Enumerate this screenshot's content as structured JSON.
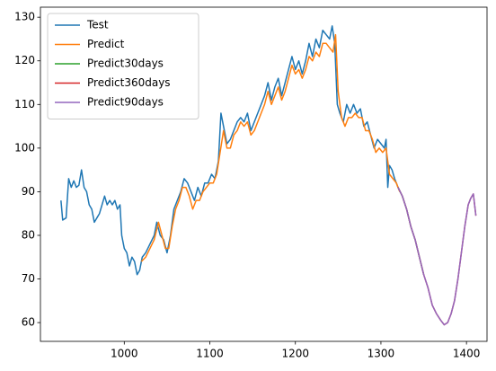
{
  "chart_data": {
    "type": "line",
    "xlim": [
      902,
      1424
    ],
    "ylim": [
      55.7,
      132.3
    ],
    "xticks": [
      1000,
      1100,
      1200,
      1300,
      1400
    ],
    "yticks": [
      60,
      70,
      80,
      90,
      100,
      110,
      120,
      130
    ],
    "legend": "upper left",
    "series": [
      {
        "name": "Test",
        "color": "#1f77b4",
        "x": [
          926,
          928,
          932,
          935,
          938,
          941,
          944,
          947,
          950,
          953,
          956,
          959,
          962,
          965,
          968,
          971,
          974,
          977,
          980,
          983,
          986,
          989,
          992,
          995,
          997,
          1000,
          1003,
          1006,
          1009,
          1012,
          1015,
          1018,
          1021,
          1025,
          1030,
          1035,
          1038,
          1042,
          1046,
          1050,
          1054,
          1058,
          1062,
          1066,
          1070,
          1074,
          1078,
          1082,
          1086,
          1090,
          1094,
          1098,
          1102,
          1106,
          1110,
          1113,
          1116,
          1120,
          1124,
          1128,
          1132,
          1136,
          1140,
          1144,
          1148,
          1152,
          1156,
          1160,
          1164,
          1168,
          1172,
          1176,
          1180,
          1184,
          1188,
          1192,
          1196,
          1200,
          1204,
          1208,
          1212,
          1216,
          1220,
          1224,
          1228,
          1232,
          1236,
          1240,
          1243,
          1246,
          1249,
          1252,
          1256,
          1260,
          1264,
          1268,
          1272,
          1276,
          1280,
          1284,
          1288,
          1292,
          1296,
          1300,
          1304,
          1306,
          1308,
          1310,
          1313,
          1316,
          1320
        ],
        "values": [
          88,
          83.5,
          84,
          93,
          91,
          92.5,
          91,
          91.5,
          95,
          91,
          90,
          87,
          86,
          83,
          84,
          85,
          87,
          89,
          87,
          88,
          87,
          88,
          86,
          87,
          80,
          77,
          76,
          73,
          75,
          74,
          71,
          72,
          75,
          76,
          78,
          80,
          83,
          80,
          79,
          76,
          80,
          86,
          88,
          90,
          93,
          92,
          90,
          88,
          91,
          89,
          92,
          92,
          94,
          93,
          97,
          108,
          105,
          101,
          102,
          104,
          106,
          107,
          106,
          108,
          104,
          106,
          108,
          110,
          112,
          115,
          111,
          114,
          116,
          112,
          115,
          118,
          121,
          118,
          120,
          117,
          120,
          124,
          121,
          125,
          123,
          127,
          126,
          125,
          128,
          124,
          110,
          108,
          106,
          110,
          108,
          110,
          108,
          109,
          105,
          106,
          103,
          100,
          102,
          101,
          100,
          102,
          91,
          96,
          95,
          93,
          91
        ]
      },
      {
        "name": "Predict",
        "color": "#ff7f0e",
        "x": [
          1020,
          1025,
          1030,
          1035,
          1040,
          1044,
          1048,
          1052,
          1056,
          1060,
          1064,
          1068,
          1072,
          1076,
          1080,
          1084,
          1088,
          1092,
          1096,
          1100,
          1104,
          1108,
          1112,
          1116,
          1120,
          1124,
          1128,
          1132,
          1136,
          1140,
          1144,
          1148,
          1152,
          1156,
          1160,
          1164,
          1168,
          1172,
          1176,
          1180,
          1184,
          1188,
          1192,
          1196,
          1200,
          1204,
          1208,
          1212,
          1216,
          1220,
          1224,
          1228,
          1232,
          1236,
          1240,
          1244,
          1247,
          1250,
          1254,
          1258,
          1262,
          1266,
          1270,
          1274,
          1278,
          1282,
          1286,
          1290,
          1294,
          1298,
          1302,
          1306,
          1310,
          1314,
          1318,
          1322
        ],
        "values": [
          74,
          75,
          77,
          79,
          83,
          80,
          77,
          77,
          82,
          86,
          88,
          91,
          91,
          89,
          86,
          88,
          88,
          90,
          91,
          92,
          92,
          94,
          99,
          104,
          100,
          100,
          103,
          104,
          106,
          105,
          106,
          103,
          104,
          106,
          108,
          110,
          113,
          110,
          112,
          114,
          111,
          113,
          116,
          119,
          117,
          118,
          116,
          118,
          121,
          120,
          122,
          121,
          124,
          124,
          123,
          122,
          126,
          113,
          107,
          105,
          107,
          107,
          108,
          107,
          107,
          104,
          104,
          102,
          99,
          100,
          99,
          100,
          94,
          93,
          92,
          90
        ]
      },
      {
        "name": "Predict30days",
        "color": "#2ca02c",
        "x": [
          1320,
          1325,
          1330,
          1335,
          1340,
          1345,
          1350
        ],
        "values": [
          91,
          89,
          86,
          82,
          79,
          75,
          71
        ]
      },
      {
        "name": "Predict360days",
        "color": "#d62728",
        "x": [
          1320,
          1325,
          1330,
          1335,
          1340,
          1345,
          1350,
          1355,
          1360,
          1365,
          1370,
          1374,
          1378,
          1382,
          1386,
          1390,
          1394,
          1398,
          1402,
          1405,
          1408,
          1411
        ],
        "values": [
          91,
          89,
          86,
          82,
          79,
          75,
          71,
          68,
          64,
          62,
          60.5,
          59.5,
          60,
          62,
          65,
          70,
          76,
          82,
          87,
          88.5,
          89.5,
          84.5
        ]
      },
      {
        "name": "Predict90days",
        "color": "#9467bd",
        "x": [
          1320,
          1325,
          1330,
          1335,
          1340,
          1345,
          1350,
          1355,
          1360,
          1365,
          1370,
          1374,
          1378,
          1382,
          1386,
          1390,
          1394,
          1398,
          1402,
          1405,
          1408,
          1411
        ],
        "values": [
          91,
          89,
          86,
          82,
          79,
          75,
          71,
          68,
          64,
          62,
          60.5,
          59.5,
          60,
          62,
          65,
          70,
          76,
          82,
          87,
          88.5,
          89.5,
          84.5
        ]
      }
    ]
  }
}
